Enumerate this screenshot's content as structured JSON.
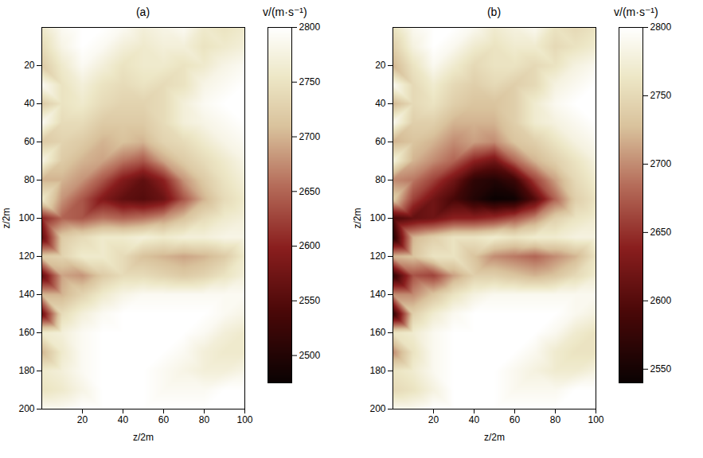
{
  "chart_data": [
    {
      "type": "heatmap",
      "title": "(a)",
      "x_label": "z/2m",
      "y_label": "z/2m",
      "xlim": [
        0,
        100
      ],
      "ylim": [
        0,
        200
      ],
      "xticks": [
        20,
        40,
        60,
        80,
        100
      ],
      "yticks": [
        20,
        40,
        60,
        80,
        100,
        120,
        140,
        160,
        180,
        200
      ],
      "x": [
        0,
        10,
        20,
        30,
        40,
        50,
        60,
        70,
        80,
        90,
        100
      ],
      "y": [
        0,
        10,
        20,
        30,
        40,
        50,
        60,
        70,
        80,
        90,
        100,
        110,
        120,
        130,
        140,
        150,
        160,
        170,
        180,
        190,
        200
      ],
      "values": [
        [
          2760,
          2790,
          2800,
          2800,
          2790,
          2770,
          2780,
          2790,
          2760,
          2750,
          2760
        ],
        [
          2740,
          2780,
          2800,
          2790,
          2770,
          2760,
          2770,
          2770,
          2750,
          2760,
          2770
        ],
        [
          2720,
          2760,
          2790,
          2770,
          2750,
          2760,
          2760,
          2750,
          2760,
          2780,
          2790
        ],
        [
          2790,
          2750,
          2770,
          2750,
          2740,
          2750,
          2740,
          2750,
          2780,
          2790,
          2800
        ],
        [
          2720,
          2750,
          2760,
          2740,
          2730,
          2730,
          2740,
          2770,
          2790,
          2800,
          2800
        ],
        [
          2790,
          2740,
          2740,
          2720,
          2720,
          2720,
          2740,
          2770,
          2780,
          2790,
          2800
        ],
        [
          2720,
          2730,
          2720,
          2700,
          2710,
          2700,
          2730,
          2740,
          2760,
          2780,
          2790
        ],
        [
          2780,
          2720,
          2700,
          2690,
          2660,
          2640,
          2690,
          2720,
          2740,
          2760,
          2780
        ],
        [
          2700,
          2700,
          2680,
          2640,
          2590,
          2560,
          2600,
          2680,
          2720,
          2750,
          2770
        ],
        [
          2760,
          2680,
          2640,
          2590,
          2560,
          2550,
          2570,
          2640,
          2700,
          2740,
          2760
        ],
        [
          2600,
          2650,
          2640,
          2660,
          2650,
          2660,
          2680,
          2710,
          2740,
          2760,
          2770
        ],
        [
          2560,
          2720,
          2740,
          2760,
          2760,
          2770,
          2760,
          2770,
          2770,
          2780,
          2780
        ],
        [
          2720,
          2730,
          2760,
          2760,
          2740,
          2710,
          2700,
          2690,
          2700,
          2720,
          2760
        ],
        [
          2560,
          2690,
          2680,
          2720,
          2740,
          2740,
          2730,
          2720,
          2730,
          2750,
          2770
        ],
        [
          2700,
          2700,
          2730,
          2760,
          2780,
          2790,
          2790,
          2790,
          2790,
          2790,
          2790
        ],
        [
          2570,
          2740,
          2770,
          2790,
          2800,
          2800,
          2800,
          2800,
          2800,
          2790,
          2780
        ],
        [
          2760,
          2770,
          2790,
          2800,
          2800,
          2800,
          2800,
          2800,
          2790,
          2770,
          2760
        ],
        [
          2700,
          2760,
          2790,
          2800,
          2800,
          2800,
          2800,
          2790,
          2770,
          2760,
          2760
        ],
        [
          2760,
          2770,
          2790,
          2800,
          2800,
          2800,
          2790,
          2780,
          2770,
          2770,
          2780
        ],
        [
          2750,
          2760,
          2780,
          2800,
          2800,
          2800,
          2790,
          2790,
          2790,
          2800,
          2800
        ],
        [
          2790,
          2790,
          2800,
          2800,
          2800,
          2800,
          2800,
          2800,
          2800,
          2800,
          2800
        ]
      ],
      "colorbar": {
        "label": "v/(m·s⁻¹)",
        "range": [
          2475,
          2800
        ],
        "ticks": [
          2500,
          2550,
          2600,
          2650,
          2700,
          2750,
          2800
        ]
      }
    },
    {
      "type": "heatmap",
      "title": "(b)",
      "x_label": "z/2m",
      "y_label": "z/2m",
      "xlim": [
        0,
        100
      ],
      "ylim": [
        0,
        200
      ],
      "xticks": [
        20,
        40,
        60,
        80,
        100
      ],
      "yticks": [
        20,
        40,
        60,
        80,
        100,
        120,
        140,
        160,
        180,
        200
      ],
      "x": [
        0,
        10,
        20,
        30,
        40,
        50,
        60,
        70,
        80,
        90,
        100
      ],
      "y": [
        0,
        10,
        20,
        30,
        40,
        50,
        60,
        70,
        80,
        90,
        100,
        110,
        120,
        130,
        140,
        150,
        160,
        170,
        180,
        190,
        200
      ],
      "values": [
        [
          2760,
          2790,
          2800,
          2800,
          2790,
          2770,
          2780,
          2790,
          2760,
          2750,
          2760
        ],
        [
          2740,
          2780,
          2800,
          2790,
          2770,
          2760,
          2770,
          2770,
          2750,
          2760,
          2770
        ],
        [
          2720,
          2760,
          2790,
          2770,
          2750,
          2760,
          2760,
          2750,
          2760,
          2780,
          2790
        ],
        [
          2790,
          2750,
          2770,
          2750,
          2740,
          2750,
          2740,
          2750,
          2780,
          2790,
          2800
        ],
        [
          2720,
          2750,
          2760,
          2740,
          2730,
          2730,
          2740,
          2770,
          2790,
          2800,
          2800
        ],
        [
          2790,
          2740,
          2740,
          2720,
          2720,
          2720,
          2740,
          2770,
          2780,
          2790,
          2800
        ],
        [
          2720,
          2730,
          2720,
          2700,
          2710,
          2700,
          2730,
          2740,
          2760,
          2780,
          2790
        ],
        [
          2780,
          2720,
          2700,
          2680,
          2640,
          2620,
          2680,
          2720,
          2740,
          2760,
          2780
        ],
        [
          2700,
          2690,
          2660,
          2620,
          2570,
          2560,
          2580,
          2660,
          2710,
          2750,
          2770
        ],
        [
          2740,
          2660,
          2620,
          2590,
          2560,
          2540,
          2545,
          2600,
          2680,
          2740,
          2760
        ],
        [
          2590,
          2610,
          2620,
          2640,
          2640,
          2650,
          2670,
          2700,
          2740,
          2760,
          2770
        ],
        [
          2560,
          2720,
          2740,
          2760,
          2760,
          2770,
          2760,
          2770,
          2770,
          2780,
          2780
        ],
        [
          2720,
          2730,
          2760,
          2760,
          2730,
          2700,
          2690,
          2680,
          2700,
          2720,
          2760
        ],
        [
          2570,
          2670,
          2660,
          2710,
          2740,
          2740,
          2730,
          2720,
          2730,
          2750,
          2770
        ],
        [
          2700,
          2700,
          2730,
          2760,
          2780,
          2790,
          2790,
          2790,
          2790,
          2790,
          2790
        ],
        [
          2570,
          2740,
          2770,
          2790,
          2800,
          2800,
          2800,
          2800,
          2800,
          2790,
          2780
        ],
        [
          2760,
          2770,
          2790,
          2800,
          2800,
          2800,
          2800,
          2800,
          2790,
          2770,
          2760
        ],
        [
          2700,
          2760,
          2790,
          2800,
          2800,
          2800,
          2800,
          2790,
          2770,
          2760,
          2760
        ],
        [
          2760,
          2770,
          2790,
          2800,
          2800,
          2800,
          2790,
          2780,
          2770,
          2770,
          2780
        ],
        [
          2750,
          2760,
          2780,
          2800,
          2800,
          2800,
          2790,
          2790,
          2790,
          2800,
          2800
        ],
        [
          2790,
          2790,
          2800,
          2800,
          2800,
          2800,
          2800,
          2800,
          2800,
          2800,
          2800
        ]
      ],
      "colorbar": {
        "label": "v/(m·s⁻¹)",
        "range": [
          2540,
          2800
        ],
        "ticks": [
          2550,
          2600,
          2650,
          2700,
          2750,
          2800
        ]
      }
    }
  ]
}
